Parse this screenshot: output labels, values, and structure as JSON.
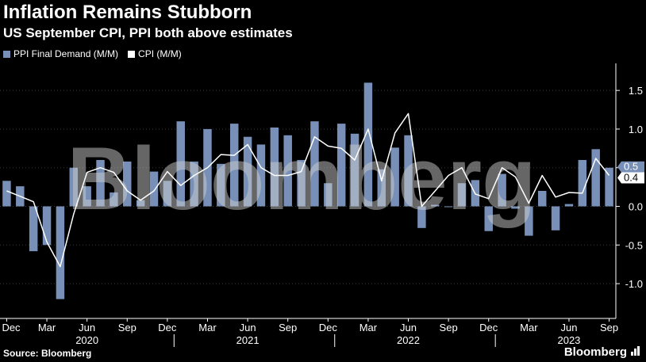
{
  "header": {
    "title": "Inflation Remains Stubborn",
    "subtitle": "US September CPI, PPI both above estimates"
  },
  "footer": {
    "source": "Source: Bloomberg",
    "brand": "Bloomberg",
    "brand_icon": "bar-chart-icon"
  },
  "watermark": "Bloomberg",
  "colors": {
    "background": "#000000",
    "ppi_bar": "#7890b7",
    "cpi_line": "#ffffff",
    "gridline": "#3a3a3a"
  },
  "chart_data": {
    "type": "bar",
    "title": "Inflation Remains Stubborn",
    "subtitle": "US September CPI, PPI both above estimates",
    "x": [
      "2019-12",
      "2020-01",
      "2020-02",
      "2020-03",
      "2020-04",
      "2020-05",
      "2020-06",
      "2020-07",
      "2020-08",
      "2020-09",
      "2020-10",
      "2020-11",
      "2020-12",
      "2021-01",
      "2021-02",
      "2021-03",
      "2021-04",
      "2021-05",
      "2021-06",
      "2021-07",
      "2021-08",
      "2021-09",
      "2021-10",
      "2021-11",
      "2021-12",
      "2022-01",
      "2022-02",
      "2022-03",
      "2022-04",
      "2022-05",
      "2022-06",
      "2022-07",
      "2022-08",
      "2022-09",
      "2022-10",
      "2022-11",
      "2022-12",
      "2023-01",
      "2023-02",
      "2023-03",
      "2023-04",
      "2023-05",
      "2023-06",
      "2023-07",
      "2023-08",
      "2023-09"
    ],
    "series": [
      {
        "name": "PPI Final Demand (M/M)",
        "type": "bar",
        "values": [
          0.33,
          0.26,
          -0.58,
          -0.5,
          -1.2,
          0.5,
          0.26,
          0.6,
          0.18,
          0.58,
          0.08,
          0.45,
          0.33,
          1.1,
          0.58,
          1.0,
          0.55,
          1.07,
          0.9,
          0.8,
          1.02,
          0.92,
          0.6,
          1.1,
          0.3,
          1.07,
          0.94,
          1.6,
          0.48,
          0.76,
          0.92,
          -0.28,
          0.02,
          -0.01,
          0.3,
          0.34,
          -0.32,
          0.42,
          -0.03,
          -0.38,
          0.2,
          -0.31,
          0.03,
          0.6,
          0.74,
          0.5
        ]
      },
      {
        "name": "CPI (M/M)",
        "type": "line",
        "values": [
          0.2,
          0.13,
          0.06,
          -0.46,
          -0.78,
          -0.1,
          0.44,
          0.5,
          0.44,
          0.2,
          0.08,
          0.2,
          0.45,
          0.27,
          0.4,
          0.5,
          0.67,
          0.66,
          0.8,
          0.5,
          0.4,
          0.4,
          0.45,
          0.9,
          0.78,
          0.75,
          0.6,
          1.0,
          0.33,
          0.95,
          1.2,
          0.0,
          0.2,
          0.4,
          0.5,
          0.16,
          0.1,
          0.5,
          0.38,
          0.04,
          0.4,
          0.12,
          0.18,
          0.17,
          0.62,
          0.4
        ]
      }
    ],
    "legend": {
      "position": "top-left",
      "entries": [
        "PPI Final Demand (M/M)",
        "CPI (M/M)"
      ]
    },
    "xlabel": "",
    "ylabel": "",
    "ylim": [
      -1.45,
      1.85
    ],
    "yticks": [
      -1.0,
      -0.5,
      0.0,
      0.5,
      1.0,
      1.5
    ],
    "ytick_labels": [
      "-1.0",
      "-0.5",
      "0.0",
      "0.5",
      "1.0",
      "1.5"
    ],
    "y_axis_side": "right",
    "grid": "horizontal-dotted",
    "xticks": [
      {
        "x": "2019-12",
        "label": "Dec"
      },
      {
        "x": "2020-03",
        "label": "Mar"
      },
      {
        "x": "2020-06",
        "label": "Jun"
      },
      {
        "x": "2020-09",
        "label": "Sep"
      },
      {
        "x": "2020-12",
        "label": "Dec"
      },
      {
        "x": "2021-03",
        "label": "Mar"
      },
      {
        "x": "2021-06",
        "label": "Jun"
      },
      {
        "x": "2021-09",
        "label": "Sep"
      },
      {
        "x": "2021-12",
        "label": "Dec"
      },
      {
        "x": "2022-03",
        "label": "Mar"
      },
      {
        "x": "2022-06",
        "label": "Jun"
      },
      {
        "x": "2022-09",
        "label": "Sep"
      },
      {
        "x": "2022-12",
        "label": "Dec"
      },
      {
        "x": "2023-03",
        "label": "Mar"
      },
      {
        "x": "2023-06",
        "label": "Jun"
      },
      {
        "x": "2023-09",
        "label": "Sep"
      }
    ],
    "year_labels": [
      {
        "x": "2020-06",
        "label": "2020"
      },
      {
        "x": "2021-06",
        "label": "2021"
      },
      {
        "x": "2022-06",
        "label": "2022"
      },
      {
        "x": "2023-06",
        "label": "2023"
      }
    ],
    "year_separators": [
      "2020-12",
      "2021-12",
      "2022-12"
    ],
    "value_labels": [
      {
        "series": "PPI Final Demand (M/M)",
        "value": 0.5,
        "text": "0.5"
      },
      {
        "series": "CPI (M/M)",
        "value": 0.4,
        "text": "0.4"
      }
    ]
  }
}
